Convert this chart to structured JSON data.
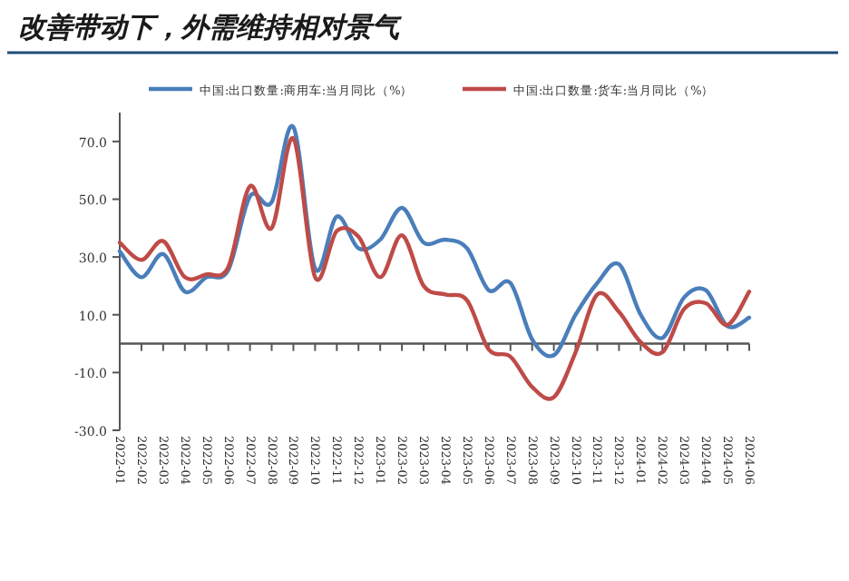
{
  "chart_data": {
    "type": "line",
    "title": "改善带动下，外需维持相对景气",
    "categories": [
      "2022-01",
      "2022-02",
      "2022-03",
      "2022-04",
      "2022-05",
      "2022-06",
      "2022-07",
      "2022-08",
      "2022-09",
      "2022-10",
      "2022-11",
      "2022-12",
      "2023-01",
      "2023-02",
      "2023-03",
      "2023-04",
      "2023-05",
      "2023-06",
      "2023-07",
      "2023-08",
      "2023-09",
      "2023-10",
      "2023-11",
      "2023-12",
      "2024-01",
      "2024-02",
      "2024-03",
      "2024-04",
      "2024-05",
      "2024-06"
    ],
    "series": [
      {
        "name": "中国:出口数量:商用车:当月同比（%）",
        "color": "#4a7ebb",
        "values": [
          32,
          23,
          31,
          18,
          23,
          25.5,
          51,
          49,
          75,
          26,
          44,
          33,
          36,
          47,
          35,
          36,
          33,
          18.5,
          21,
          1.5,
          -4,
          10,
          21,
          27.5,
          10,
          2,
          16,
          18.5,
          6,
          9
        ]
      },
      {
        "name": "中国:出口数量:货车:当月同比（%）",
        "color": "#be4b48",
        "values": [
          35,
          29,
          35.5,
          23,
          24,
          26.5,
          54.5,
          40,
          71,
          23,
          39,
          37,
          23,
          37.5,
          20,
          17,
          15,
          -2,
          -4.5,
          -15,
          -18.5,
          -3,
          17,
          11,
          0.5,
          -3,
          12,
          14,
          6.5,
          18
        ]
      }
    ],
    "ylim": [
      -30,
      80
    ],
    "yticks": [
      {
        "value": -30,
        "label": "-30.0"
      },
      {
        "value": -10,
        "label": "-10.0"
      },
      {
        "value": 10,
        "label": "10.0"
      },
      {
        "value": 30,
        "label": "30.0"
      },
      {
        "value": 50,
        "label": "50.0"
      },
      {
        "value": 70,
        "label": "70.0"
      }
    ],
    "legend": "top",
    "line_style": "solid"
  }
}
